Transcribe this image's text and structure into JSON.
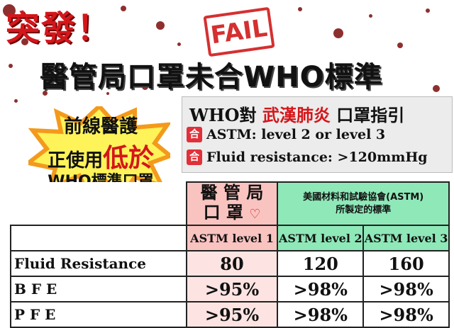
{
  "headline": {
    "urgent": "突發！",
    "stamp": "FAIL",
    "main": "醫管局口罩未合WHO標準"
  },
  "who_panel": {
    "title_prefix": "WHO對",
    "title_red": "武漢肺炎",
    "title_suffix": "口罩指引",
    "badge": "合",
    "rows": [
      "ASTM: level 2 or level 3",
      "Fluid resistance: >120mmHg"
    ]
  },
  "callout": {
    "line1": "前線醫護",
    "line2_prefix": "正使用",
    "line2_red": "低於",
    "line3": "WHO標準口罩"
  },
  "table": {
    "ha_header": [
      "醫 管 局",
      "口 罩"
    ],
    "astm_header": [
      "美國材料和試驗協會(ASTM)",
      "所製定的標準"
    ],
    "levels": [
      "ASTM level 1",
      "ASTM level 2",
      "ASTM level 3"
    ],
    "rows": [
      {
        "label": "Fluid Resistance",
        "values": [
          "80",
          "120",
          "160"
        ]
      },
      {
        "label": "B F E",
        "values": [
          ">95%",
          ">98%",
          ">98%"
        ]
      },
      {
        "label": "P F E",
        "values": [
          ">95%",
          ">98%",
          ">98%"
        ]
      }
    ]
  },
  "colors": {
    "accent_red": "#d4161b",
    "ha_pink": "#f9c3c0",
    "astm_green": "#8fe8b8",
    "burst_yellow": "#fff35a",
    "burst_orange": "#f39a1c"
  }
}
